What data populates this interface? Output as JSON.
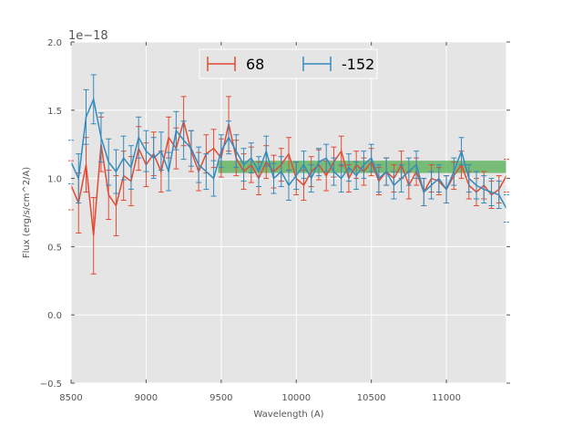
{
  "chart_data": {
    "type": "line",
    "title": "",
    "xlabel": "Wavelength (A)",
    "ylabel": "Flux (erg/s/cm^2/A)",
    "y_offset_label": "1e−18",
    "xlim": [
      8500,
      11400
    ],
    "ylim": [
      -0.5,
      2.0
    ],
    "x_ticks": [
      8500,
      9000,
      9500,
      10000,
      10500,
      11000
    ],
    "x_tick_labels": [
      "8500",
      "9000",
      "9500",
      "10000",
      "10500",
      "11000"
    ],
    "y_ticks": [
      -0.5,
      0.0,
      0.5,
      1.0,
      1.5,
      2.0
    ],
    "y_tick_labels": [
      "−0.5",
      "0.0",
      "0.5",
      "1.0",
      "1.5",
      "2.0"
    ],
    "grid": true,
    "legend_position": "top-center",
    "colors": {
      "background": "#e5e5e5",
      "grid": "#ffffff",
      "series1": "#e24a33",
      "series2": "#348abd",
      "band": "#2ca02c"
    },
    "band": {
      "x": [
        9480,
        11400
      ],
      "y": [
        1.04,
        1.13
      ]
    },
    "series": [
      {
        "name": "68",
        "color": "#e24a33",
        "x": [
          8500,
          8550,
          8600,
          8650,
          8700,
          8750,
          8800,
          8850,
          8900,
          8950,
          9000,
          9050,
          9100,
          9150,
          9200,
          9250,
          9300,
          9350,
          9400,
          9450,
          9500,
          9550,
          9600,
          9650,
          9700,
          9750,
          9800,
          9850,
          9900,
          9950,
          10000,
          10050,
          10100,
          10150,
          10200,
          10250,
          10300,
          10350,
          10400,
          10450,
          10500,
          10550,
          10600,
          10650,
          10700,
          10750,
          10800,
          10850,
          10900,
          10950,
          11000,
          11050,
          11100,
          11150,
          11200,
          11250,
          11300,
          11350,
          11400
        ],
        "y": [
          0.95,
          0.82,
          1.1,
          0.58,
          1.25,
          0.88,
          0.8,
          1.02,
          0.98,
          1.22,
          1.1,
          1.18,
          1.05,
          1.3,
          1.22,
          1.42,
          1.2,
          1.05,
          1.18,
          1.22,
          1.15,
          1.4,
          1.15,
          1.05,
          1.1,
          1.0,
          1.12,
          1.05,
          1.1,
          1.18,
          1.0,
          0.95,
          1.05,
          1.1,
          1.02,
          1.12,
          1.2,
          1.0,
          1.1,
          1.05,
          1.12,
          0.98,
          1.05,
          1.0,
          1.1,
          0.95,
          1.05,
          0.9,
          1.0,
          0.98,
          0.92,
          1.02,
          1.1,
          0.95,
          0.9,
          0.95,
          0.88,
          0.92,
          1.02
        ],
        "errors": [
          0.18,
          0.22,
          0.2,
          0.28,
          0.2,
          0.18,
          0.22,
          0.18,
          0.18,
          0.16,
          0.16,
          0.16,
          0.15,
          0.15,
          0.15,
          0.18,
          0.15,
          0.14,
          0.14,
          0.14,
          0.14,
          0.2,
          0.13,
          0.13,
          0.13,
          0.12,
          0.12,
          0.12,
          0.12,
          0.12,
          0.12,
          0.11,
          0.11,
          0.11,
          0.11,
          0.11,
          0.11,
          0.1,
          0.1,
          0.1,
          0.1,
          0.1,
          0.1,
          0.1,
          0.1,
          0.1,
          0.1,
          0.1,
          0.1,
          0.1,
          0.1,
          0.1,
          0.1,
          0.1,
          0.1,
          0.1,
          0.1,
          0.1,
          0.12
        ]
      },
      {
        "name": "-152",
        "color": "#348abd",
        "x": [
          8500,
          8550,
          8600,
          8650,
          8700,
          8750,
          8800,
          8850,
          8900,
          8950,
          9000,
          9050,
          9100,
          9150,
          9200,
          9250,
          9300,
          9350,
          9400,
          9450,
          9500,
          9550,
          9600,
          9650,
          9700,
          9750,
          9800,
          9850,
          9900,
          9950,
          10000,
          10050,
          10100,
          10150,
          10200,
          10250,
          10300,
          10350,
          10400,
          10450,
          10500,
          10550,
          10600,
          10650,
          10700,
          10750,
          10800,
          10850,
          10900,
          10950,
          11000,
          11050,
          11100,
          11150,
          11200,
          11250,
          11300,
          11350,
          11400
        ],
        "y": [
          1.12,
          1.0,
          1.45,
          1.58,
          1.3,
          1.12,
          1.05,
          1.15,
          1.08,
          1.3,
          1.2,
          1.15,
          1.2,
          1.05,
          1.35,
          1.28,
          1.22,
          1.1,
          1.05,
          1.0,
          1.2,
          1.3,
          1.2,
          1.1,
          1.15,
          1.05,
          1.2,
          1.0,
          1.05,
          0.95,
          1.02,
          1.1,
          1.0,
          1.12,
          1.15,
          1.05,
          1.0,
          1.08,
          1.02,
          1.1,
          1.15,
          1.0,
          1.05,
          0.95,
          1.0,
          1.05,
          1.1,
          0.9,
          0.95,
          1.0,
          0.92,
          1.05,
          1.2,
          1.0,
          0.95,
          0.92,
          0.9,
          0.88,
          0.78
        ],
        "errors": [
          0.16,
          0.18,
          0.2,
          0.18,
          0.18,
          0.17,
          0.16,
          0.16,
          0.16,
          0.15,
          0.15,
          0.15,
          0.14,
          0.14,
          0.14,
          0.14,
          0.13,
          0.13,
          0.13,
          0.13,
          0.12,
          0.12,
          0.12,
          0.12,
          0.11,
          0.11,
          0.11,
          0.11,
          0.11,
          0.11,
          0.1,
          0.1,
          0.1,
          0.1,
          0.1,
          0.1,
          0.1,
          0.1,
          0.1,
          0.1,
          0.1,
          0.1,
          0.1,
          0.1,
          0.1,
          0.1,
          0.1,
          0.1,
          0.1,
          0.1,
          0.1,
          0.1,
          0.1,
          0.1,
          0.1,
          0.1,
          0.1,
          0.1,
          0.1
        ]
      }
    ]
  }
}
